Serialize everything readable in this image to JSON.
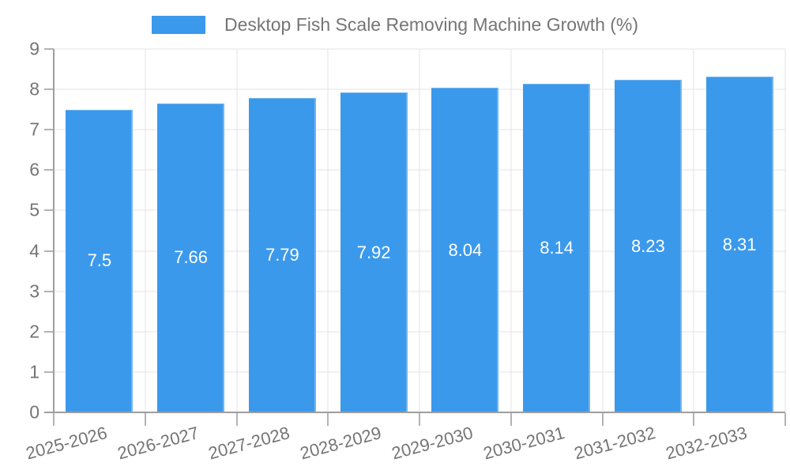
{
  "chart_data": {
    "type": "bar",
    "title": "Desktop Fish Scale Removing Machine Growth (%)",
    "categories": [
      "2025-2026",
      "2026-2027",
      "2027-2028",
      "2028-2029",
      "2029-2030",
      "2030-2031",
      "2031-2032",
      "2032-2033"
    ],
    "series": [
      {
        "name": "Desktop Fish Scale Removing Machine Growth (%)",
        "values": [
          7.5,
          7.66,
          7.79,
          7.92,
          8.04,
          8.14,
          8.23,
          8.31
        ]
      }
    ],
    "value_labels": [
      "7.5",
      "7.66",
      "7.79",
      "7.92",
      "8.04",
      "8.14",
      "8.23",
      "8.31"
    ],
    "xlabel": "",
    "ylabel": "",
    "ylim": [
      0,
      9
    ],
    "yticks": [
      "0",
      "1",
      "2",
      "3",
      "4",
      "5",
      "6",
      "7",
      "8",
      "9"
    ],
    "grid": true,
    "legend_position": "top",
    "x_label_rotation_deg": -15,
    "colors": {
      "bar": "#3B99EC",
      "value_label": "#FFFFFF",
      "axis_text": "#757575",
      "grid_line": "#E3E3E3",
      "axis_line": "#9E9E9E",
      "tick": "#B3B3B3",
      "background": "#FFFFFF"
    }
  }
}
